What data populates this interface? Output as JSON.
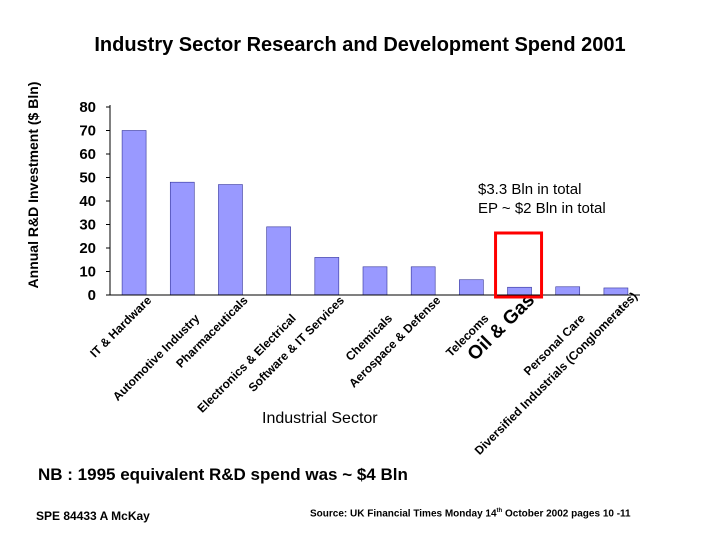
{
  "chart_data": {
    "type": "bar",
    "title": "Industry Sector Research and Development Spend 2001",
    "ylabel": "Annual R&D Investment ($ Bln)",
    "xlabel": "Industrial Sector",
    "ylim": [
      0,
      80
    ],
    "yticks": [
      "80",
      "70",
      "60",
      "50",
      "40",
      "30",
      "20",
      "10",
      "0"
    ],
    "categories": [
      "IT & Hardware",
      "Automotive Industry",
      "Pharmaceuticals",
      "Electronics & Electrical",
      "Software & IT Services",
      "Chemicals",
      "Aerospace & Defense",
      "Telecoms",
      "Oil & Gas",
      "Personal Care",
      "Diversified Industrials (Conglomerates)"
    ],
    "values": [
      70,
      48,
      47,
      29,
      16,
      12,
      12,
      6.5,
      3.3,
      3.5,
      3
    ],
    "bar_color": "#9999ff",
    "highlight_index": 8,
    "highlight_color": "#ff0000",
    "annotation_lines": [
      "$3.3 Bln in total",
      "EP ~ $2 Bln in total"
    ]
  },
  "footer": {
    "nb": "NB : 1995 equivalent R&D spend was ~ $4 Bln",
    "reference": "SPE 84433  A McKay",
    "source_pre": "Source:  UK Financial Times Monday 14",
    "source_sup": "th",
    "source_post": " October 2002  pages 10 -11"
  }
}
